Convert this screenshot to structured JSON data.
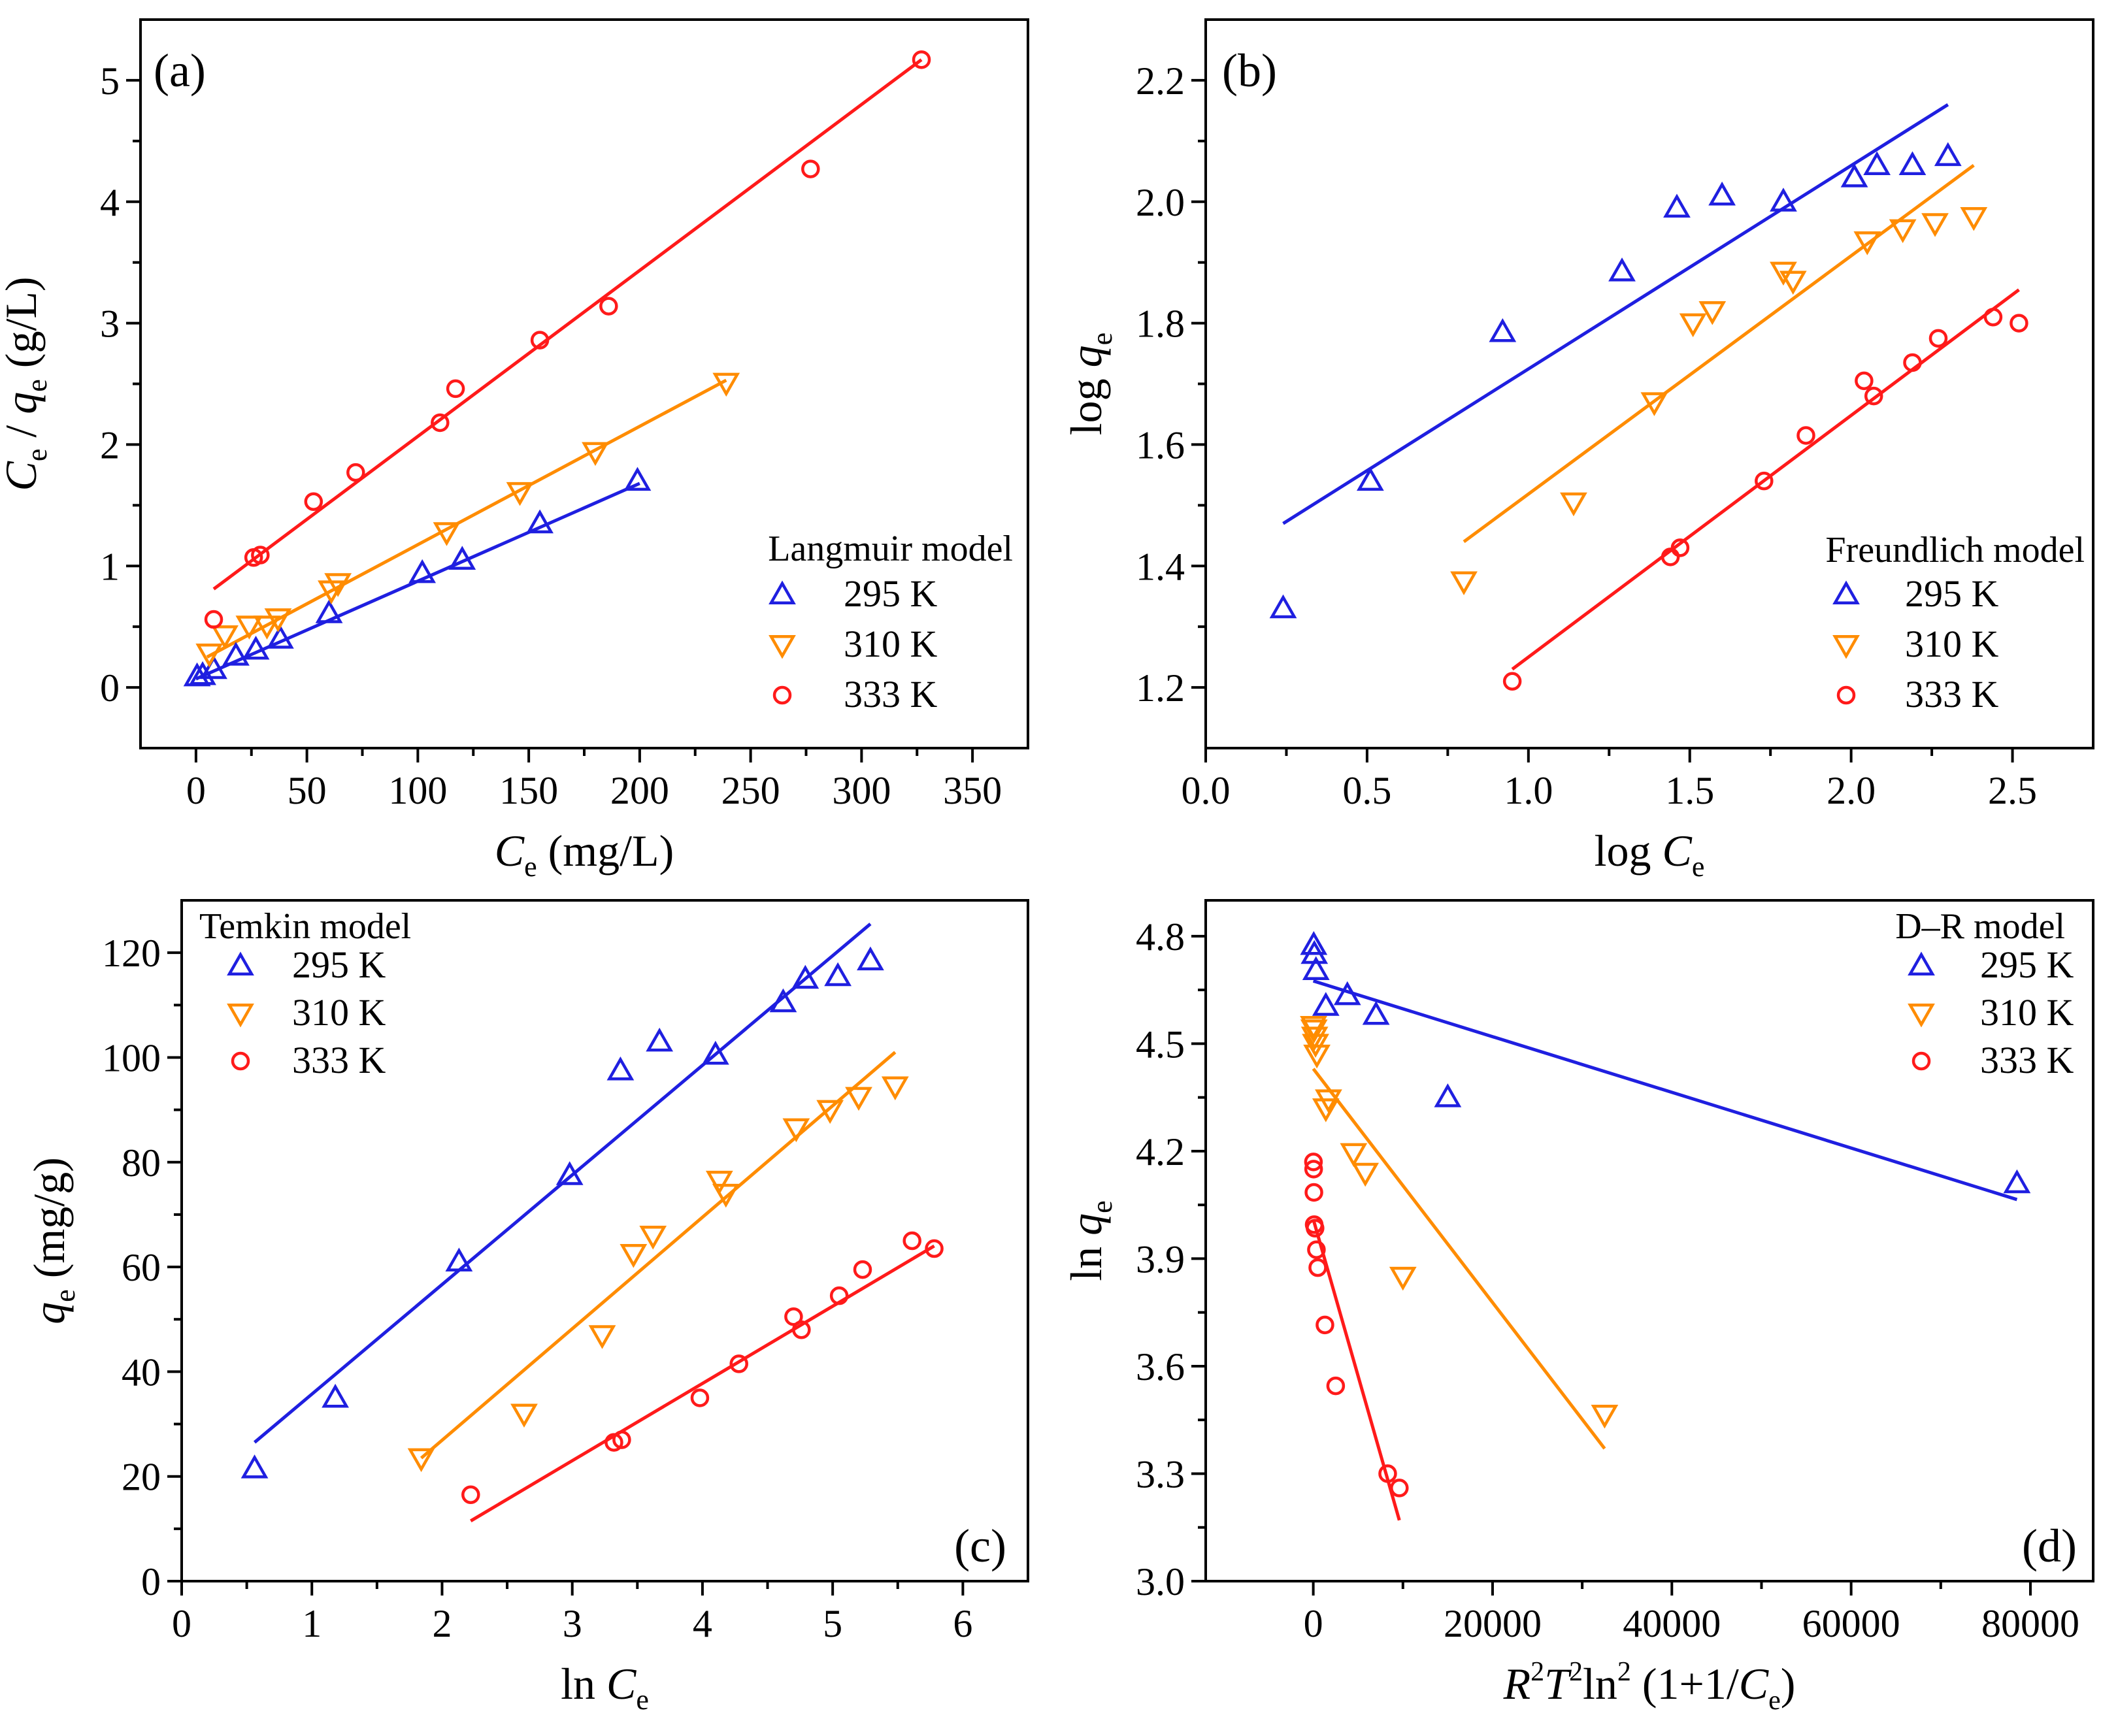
{
  "colors": {
    "295 K": "#1f1fe0",
    "310 K": "#ff8c00",
    "333 K": "#ff1a1a"
  },
  "chart_data": [
    {
      "panel": "(a)",
      "type": "scatter",
      "legend_title": "Langmuir model",
      "legend_position": "middle-right",
      "xlabel": {
        "main": "C",
        "sub": "e",
        "rest": " (mg/L)"
      },
      "ylabel": {
        "main": "C",
        "sub": "e",
        "mid": " / q",
        "sub2": "e",
        "rest": " (g/L)"
      },
      "xlim": [
        -25,
        375
      ],
      "ylim": [
        -0.5,
        5.5
      ],
      "xticks": [
        0,
        50,
        100,
        150,
        200,
        250,
        300,
        350
      ],
      "xticklabels": [
        "0",
        "50",
        "100",
        "150",
        "200",
        "250",
        "300",
        "350"
      ],
      "yticks": [
        0,
        1,
        2,
        3,
        4,
        5
      ],
      "yticklabels": [
        "0",
        "1",
        "2",
        "3",
        "4",
        "5"
      ],
      "series": [
        {
          "name": "295 K",
          "marker": "triangle-up",
          "points": [
            [
              0.5,
              0.09
            ],
            [
              3,
              0.1
            ],
            [
              8,
              0.15
            ],
            [
              18,
              0.26
            ],
            [
              27,
              0.31
            ],
            [
              38,
              0.4
            ],
            [
              60,
              0.61
            ],
            [
              102,
              0.94
            ],
            [
              120,
              1.05
            ],
            [
              155,
              1.35
            ],
            [
              199,
              1.7
            ]
          ],
          "fit": [
            [
              0,
              0.07
            ],
            [
              200,
              1.68
            ]
          ]
        },
        {
          "name": "310 K",
          "marker": "triangle-down",
          "points": [
            [
              6,
              0.28
            ],
            [
              13,
              0.43
            ],
            [
              24,
              0.51
            ],
            [
              32,
              0.51
            ],
            [
              37,
              0.57
            ],
            [
              61,
              0.8
            ],
            [
              64,
              0.86
            ],
            [
              113,
              1.28
            ],
            [
              146,
              1.61
            ],
            [
              180,
              1.94
            ],
            [
              239,
              2.51
            ]
          ],
          "fit": [
            [
              5,
              0.25
            ],
            [
              239,
              2.53
            ]
          ]
        },
        {
          "name": "333 K",
          "marker": "circle",
          "points": [
            [
              8,
              0.56
            ],
            [
              26,
              1.07
            ],
            [
              29,
              1.09
            ],
            [
              53,
              1.53
            ],
            [
              72,
              1.77
            ],
            [
              110,
              2.18
            ],
            [
              117,
              2.46
            ],
            [
              155,
              2.86
            ],
            [
              186,
              3.14
            ],
            [
              277,
              4.27
            ],
            [
              327,
              5.17
            ]
          ],
          "fit": [
            [
              8,
              0.81
            ],
            [
              327,
              5.17
            ]
          ]
        }
      ]
    },
    {
      "panel": "(b)",
      "type": "scatter",
      "legend_title": "Freundlich model",
      "legend_position": "bottom-right",
      "xlabel": {
        "main": "log C",
        "sub": "e",
        "rest": ""
      },
      "ylabel": {
        "main": "log q",
        "sub": "e",
        "rest": ""
      },
      "xlim": [
        0.0,
        2.75
      ],
      "ylim": [
        1.1,
        2.3
      ],
      "xticks": [
        0.0,
        0.5,
        1.0,
        1.5,
        2.0,
        2.5
      ],
      "xticklabels": [
        "0.0",
        "0.5",
        "1.0",
        "1.5",
        "2.0",
        "2.5"
      ],
      "yticks": [
        1.2,
        1.4,
        1.6,
        1.8,
        2.0,
        2.2
      ],
      "yticklabels": [
        "1.2",
        "1.4",
        "1.6",
        "1.8",
        "2.0",
        "2.2"
      ],
      "series": [
        {
          "name": "295 K",
          "marker": "triangle-up",
          "points": [
            [
              0.24,
              1.33
            ],
            [
              0.51,
              1.54
            ],
            [
              0.92,
              1.785
            ],
            [
              1.29,
              1.885
            ],
            [
              1.46,
              1.99
            ],
            [
              1.6,
              2.01
            ],
            [
              1.79,
              2.0
            ],
            [
              2.01,
              2.04
            ],
            [
              2.08,
              2.06
            ],
            [
              2.19,
              2.06
            ],
            [
              2.3,
              2.075
            ]
          ],
          "fit": [
            [
              0.24,
              1.47
            ],
            [
              2.3,
              2.16
            ]
          ]
        },
        {
          "name": "310 K",
          "marker": "triangle-down",
          "points": [
            [
              0.8,
              1.375
            ],
            [
              1.14,
              1.505
            ],
            [
              1.39,
              1.67
            ],
            [
              1.51,
              1.8
            ],
            [
              1.57,
              1.82
            ],
            [
              1.79,
              1.885
            ],
            [
              1.82,
              1.87
            ],
            [
              2.05,
              1.935
            ],
            [
              2.16,
              1.955
            ],
            [
              2.26,
              1.965
            ],
            [
              2.38,
              1.975
            ]
          ],
          "fit": [
            [
              0.8,
              1.44
            ],
            [
              2.38,
              2.06
            ]
          ]
        },
        {
          "name": "333 K",
          "marker": "circle",
          "points": [
            [
              0.95,
              1.21
            ],
            [
              1.44,
              1.415
            ],
            [
              1.47,
              1.43
            ],
            [
              1.73,
              1.54
            ],
            [
              1.86,
              1.615
            ],
            [
              2.04,
              1.705
            ],
            [
              2.07,
              1.68
            ],
            [
              2.19,
              1.735
            ],
            [
              2.27,
              1.775
            ],
            [
              2.44,
              1.81
            ],
            [
              2.52,
              1.8
            ]
          ],
          "fit": [
            [
              0.95,
              1.23
            ],
            [
              2.52,
              1.855
            ]
          ]
        }
      ]
    },
    {
      "panel": "(c)",
      "type": "scatter",
      "legend_title": "Temkin model",
      "legend_position": "top-left",
      "xlabel": {
        "main": "ln C",
        "sub": "e",
        "rest": ""
      },
      "ylabel": {
        "main": "q",
        "sub": "e",
        "rest": " (mg/g)"
      },
      "xlim": [
        0,
        6.5
      ],
      "ylim": [
        0,
        130
      ],
      "xticks": [
        0,
        1,
        2,
        3,
        4,
        5,
        6
      ],
      "xticklabels": [
        "0",
        "1",
        "2",
        "3",
        "4",
        "5",
        "6"
      ],
      "yticks": [
        0,
        20,
        40,
        60,
        80,
        100,
        120
      ],
      "yticklabels": [
        "0",
        "20",
        "40",
        "60",
        "80",
        "100",
        "120"
      ],
      "series": [
        {
          "name": "295 K",
          "marker": "triangle-up",
          "points": [
            [
              0.56,
              21.5
            ],
            [
              1.18,
              35
            ],
            [
              2.13,
              61
            ],
            [
              2.98,
              77.5
            ],
            [
              3.37,
              97.5
            ],
            [
              3.67,
              103
            ],
            [
              4.1,
              100.5
            ],
            [
              4.62,
              110.5
            ],
            [
              4.79,
              115
            ],
            [
              5.04,
              115.5
            ],
            [
              5.29,
              118.5
            ]
          ],
          "fit": [
            [
              0.56,
              26.5
            ],
            [
              5.29,
              125.5
            ]
          ]
        },
        {
          "name": "310 K",
          "marker": "triangle-down",
          "points": [
            [
              1.84,
              23.5
            ],
            [
              2.63,
              32
            ],
            [
              3.23,
              47
            ],
            [
              3.47,
              62.5
            ],
            [
              3.62,
              66
            ],
            [
              4.13,
              76.5
            ],
            [
              4.18,
              74
            ],
            [
              4.72,
              86.5
            ],
            [
              4.98,
              90
            ],
            [
              5.2,
              92.5
            ],
            [
              5.48,
              94.5
            ]
          ],
          "fit": [
            [
              1.84,
              23.5
            ],
            [
              5.48,
              101
            ]
          ]
        },
        {
          "name": "333 K",
          "marker": "circle",
          "points": [
            [
              2.22,
              16.5
            ],
            [
              3.32,
              26.5
            ],
            [
              3.38,
              27
            ],
            [
              3.98,
              35
            ],
            [
              4.28,
              41.5
            ],
            [
              4.7,
              50.5
            ],
            [
              4.76,
              48
            ],
            [
              5.05,
              54.5
            ],
            [
              5.23,
              59.5
            ],
            [
              5.61,
              65
            ],
            [
              5.78,
              63.5
            ]
          ],
          "fit": [
            [
              2.22,
              11.5
            ],
            [
              5.78,
              64
            ]
          ]
        }
      ]
    },
    {
      "panel": "(d)",
      "type": "scatter",
      "legend_title": "D–R model",
      "legend_position": "top-right",
      "xlabel": {
        "main": "R",
        "sup": "2",
        "mid": "T",
        "sup2": "2",
        "mid2": "ln",
        "sup3": "2",
        "rest": " (1+1/C",
        "sub": "e",
        "end": ")"
      },
      "ylabel": {
        "main": "ln q",
        "sub": "e",
        "rest": ""
      },
      "xlim": [
        -12000,
        87000
      ],
      "ylim": [
        3.0,
        4.9
      ],
      "xticks": [
        0,
        20000,
        40000,
        60000,
        80000
      ],
      "xticklabels": [
        "0",
        "20000",
        "40000",
        "60000",
        "80000"
      ],
      "yticks": [
        3.0,
        3.3,
        3.6,
        3.9,
        4.2,
        4.5,
        4.8
      ],
      "yticklabels": [
        "3.0",
        "3.3",
        "3.6",
        "3.9",
        "4.2",
        "4.5",
        "4.8"
      ],
      "series": [
        {
          "name": "295 K",
          "marker": "triangle-up",
          "points": [
            [
              50,
              4.775
            ],
            [
              120,
              4.75
            ],
            [
              300,
              4.705
            ],
            [
              1400,
              4.605
            ],
            [
              3800,
              4.635
            ],
            [
              7000,
              4.58
            ],
            [
              15000,
              4.35
            ],
            [
              78500,
              4.11
            ]
          ],
          "fit": [
            [
              0,
              4.675
            ],
            [
              78500,
              4.065
            ]
          ]
        },
        {
          "name": "310 K",
          "marker": "triangle-down",
          "points": [
            [
              30,
              4.55
            ],
            [
              80,
              4.54
            ],
            [
              150,
              4.52
            ],
            [
              250,
              4.5
            ],
            [
              400,
              4.47
            ],
            [
              1400,
              4.32
            ],
            [
              1700,
              4.345
            ],
            [
              4500,
              4.195
            ],
            [
              5800,
              4.14
            ],
            [
              10000,
              3.85
            ],
            [
              32500,
              3.465
            ]
          ],
          "fit": [
            [
              0,
              4.43
            ],
            [
              32500,
              3.37
            ]
          ]
        },
        {
          "name": "333 K",
          "marker": "circle",
          "points": [
            [
              20,
              4.17
            ],
            [
              40,
              4.15
            ],
            [
              70,
              4.085
            ],
            [
              100,
              3.995
            ],
            [
              200,
              3.985
            ],
            [
              350,
              3.925
            ],
            [
              500,
              3.875
            ],
            [
              1300,
              3.715
            ],
            [
              2500,
              3.545
            ],
            [
              8300,
              3.3
            ],
            [
              9600,
              3.26
            ]
          ],
          "fit": [
            [
              0,
              4.01
            ],
            [
              9600,
              3.17
            ]
          ]
        }
      ]
    }
  ]
}
